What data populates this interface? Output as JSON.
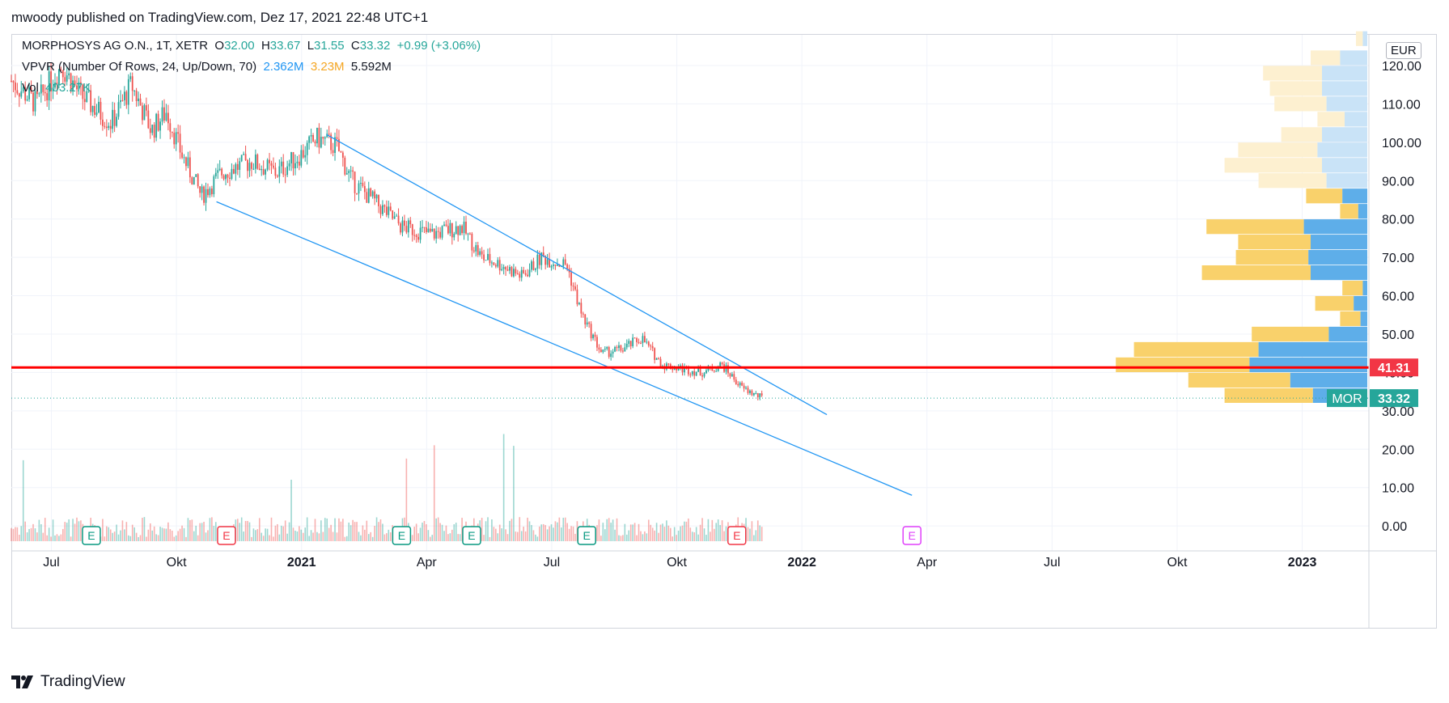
{
  "header": {
    "text": "mwoody published on TradingView.com, Dez 17, 2021 22:48 UTC+1"
  },
  "legend": {
    "symbol": "MORPHOSYS AG O.N., 1T, XETR",
    "o_label": "O",
    "o_value": "32.00",
    "h_label": "H",
    "h_value": "33.67",
    "l_label": "L",
    "l_value": "31.55",
    "c_label": "C",
    "c_value": "33.32",
    "change": "+0.99 (+3.06%)",
    "vpvr_label": "VPVR (Number Of Rows, 24, Up/Down, 70)",
    "vpvr_up": "2.362M",
    "vpvr_down": "3.23M",
    "vpvr_total": "5.592M",
    "vol_label": "Vol",
    "vol_value": "403.27K"
  },
  "currency": "EUR",
  "footer": {
    "brand": "TradingView"
  },
  "colors": {
    "up": "#26a69a",
    "down": "#ef5350",
    "trendline": "#2196f3",
    "hline": "#ff0000",
    "vpvr_up": "#5eaee9",
    "vpvr_down": "#f9d16b",
    "vpvr_up_light": "#c9e3f7",
    "vpvr_down_light": "#fdf0d0",
    "earnings_green": "#089981",
    "earnings_red": "#f23645",
    "earnings_future": "#e040fb"
  },
  "chart_data": {
    "type": "candlestick",
    "title": "MORPHOSYS AG O.N., 1T, XETR",
    "ylabel": "EUR",
    "ylim": [
      -6.5,
      128
    ],
    "y_ticks": [
      0,
      10,
      20,
      30,
      40,
      50,
      60,
      70,
      80,
      90,
      100,
      110,
      120
    ],
    "y_tick_labels": [
      "0.00",
      "10.00",
      "20.00",
      "30.00",
      "40.00",
      "50.00",
      "60.00",
      "70.00",
      "80.00",
      "90.00",
      "100.00",
      "110.00",
      "120.00"
    ],
    "x_range": [
      2020.42,
      2023.13
    ],
    "x_ticks": [
      {
        "t": 2020.5,
        "label": "Jul",
        "bold": false
      },
      {
        "t": 2020.75,
        "label": "Okt",
        "bold": false
      },
      {
        "t": 2021.0,
        "label": "2021",
        "bold": true
      },
      {
        "t": 2021.25,
        "label": "Apr",
        "bold": false
      },
      {
        "t": 2021.5,
        "label": "Jul",
        "bold": false
      },
      {
        "t": 2021.75,
        "label": "Okt",
        "bold": false
      },
      {
        "t": 2022.0,
        "label": "2022",
        "bold": true
      },
      {
        "t": 2022.25,
        "label": "Apr",
        "bold": false
      },
      {
        "t": 2022.5,
        "label": "Jul",
        "bold": false
      },
      {
        "t": 2022.75,
        "label": "Okt",
        "bold": false
      },
      {
        "t": 2023.0,
        "label": "2023",
        "bold": true
      }
    ],
    "price_path": [
      [
        2020.42,
        116
      ],
      [
        2020.47,
        110
      ],
      [
        2020.52,
        120
      ],
      [
        2020.56,
        112
      ],
      [
        2020.62,
        105
      ],
      [
        2020.66,
        115
      ],
      [
        2020.7,
        103
      ],
      [
        2020.73,
        108
      ],
      [
        2020.76,
        97
      ],
      [
        2020.8,
        86
      ],
      [
        2020.84,
        92
      ],
      [
        2020.9,
        95
      ],
      [
        2020.95,
        92
      ],
      [
        2021.0,
        97
      ],
      [
        2021.03,
        101
      ],
      [
        2021.07,
        99
      ],
      [
        2021.1,
        90
      ],
      [
        2021.15,
        84
      ],
      [
        2021.2,
        78
      ],
      [
        2021.26,
        76
      ],
      [
        2021.32,
        78
      ],
      [
        2021.36,
        70
      ],
      [
        2021.4,
        68
      ],
      [
        2021.44,
        65
      ],
      [
        2021.48,
        70
      ],
      [
        2021.53,
        68
      ],
      [
        2021.56,
        55
      ],
      [
        2021.6,
        45
      ],
      [
        2021.64,
        46
      ],
      [
        2021.68,
        49
      ],
      [
        2021.72,
        42
      ],
      [
        2021.76,
        41
      ],
      [
        2021.8,
        40
      ],
      [
        2021.84,
        42
      ],
      [
        2021.88,
        36
      ],
      [
        2021.92,
        33.32
      ]
    ],
    "trendlines": [
      {
        "from": [
          2021.05,
          102
        ],
        "to": [
          2022.05,
          29
        ]
      },
      {
        "from": [
          2020.83,
          84.5
        ],
        "to": [
          2022.22,
          8
        ]
      }
    ],
    "horizontal_line": {
      "value": 41.31,
      "label": "41.31"
    },
    "last_price": {
      "value": 33.32,
      "label": "33.32",
      "symbol": "MOR"
    },
    "vpvr_rows": [
      {
        "price": 125,
        "up": 0.2,
        "down": 0.3,
        "faded": true
      },
      {
        "price": 120,
        "up": 1.2,
        "down": 1.3,
        "faded": true
      },
      {
        "price": 116,
        "up": 2.0,
        "down": 2.6,
        "faded": true
      },
      {
        "price": 112,
        "up": 2.0,
        "down": 2.3,
        "faded": true
      },
      {
        "price": 108,
        "up": 1.8,
        "down": 2.3,
        "faded": true
      },
      {
        "price": 104,
        "up": 1.0,
        "down": 1.2,
        "faded": true
      },
      {
        "price": 100,
        "up": 2.0,
        "down": 1.8,
        "faded": true
      },
      {
        "price": 96,
        "up": 2.2,
        "down": 3.5,
        "faded": true
      },
      {
        "price": 92,
        "up": 2.0,
        "down": 4.3,
        "faded": true
      },
      {
        "price": 88,
        "up": 1.8,
        "down": 3.0,
        "faded": true
      },
      {
        "price": 84,
        "up": 1.1,
        "down": 1.6,
        "faded": false
      },
      {
        "price": 80,
        "up": 0.4,
        "down": 0.8,
        "faded": false
      },
      {
        "price": 76,
        "up": 2.8,
        "down": 4.3,
        "faded": false
      },
      {
        "price": 72,
        "up": 2.5,
        "down": 3.2,
        "faded": false
      },
      {
        "price": 68,
        "up": 2.6,
        "down": 3.2,
        "faded": false
      },
      {
        "price": 64,
        "up": 2.5,
        "down": 4.8,
        "faded": false
      },
      {
        "price": 60,
        "up": 0.2,
        "down": 0.9,
        "faded": false
      },
      {
        "price": 56,
        "up": 0.6,
        "down": 1.7,
        "faded": false
      },
      {
        "price": 52,
        "up": 0.3,
        "down": 0.9,
        "faded": false
      },
      {
        "price": 48,
        "up": 1.7,
        "down": 3.4,
        "faded": false
      },
      {
        "price": 44,
        "up": 4.8,
        "down": 5.5,
        "faded": false
      },
      {
        "price": 40,
        "up": 5.2,
        "down": 5.9,
        "faded": false
      },
      {
        "price": 36,
        "up": 3.4,
        "down": 4.5,
        "faded": false
      },
      {
        "price": 32,
        "up": 2.4,
        "down": 3.9,
        "faded": false
      }
    ],
    "earnings_markers": [
      {
        "t": 2020.58,
        "label": "E",
        "kind": "green"
      },
      {
        "t": 2020.85,
        "label": "E",
        "kind": "red"
      },
      {
        "t": 2021.2,
        "label": "E",
        "kind": "green"
      },
      {
        "t": 2021.34,
        "label": "E",
        "kind": "green"
      },
      {
        "t": 2021.57,
        "label": "E",
        "kind": "green"
      },
      {
        "t": 2021.87,
        "label": "E",
        "kind": "red"
      },
      {
        "t": 2022.22,
        "label": "E",
        "kind": "future"
      }
    ]
  }
}
